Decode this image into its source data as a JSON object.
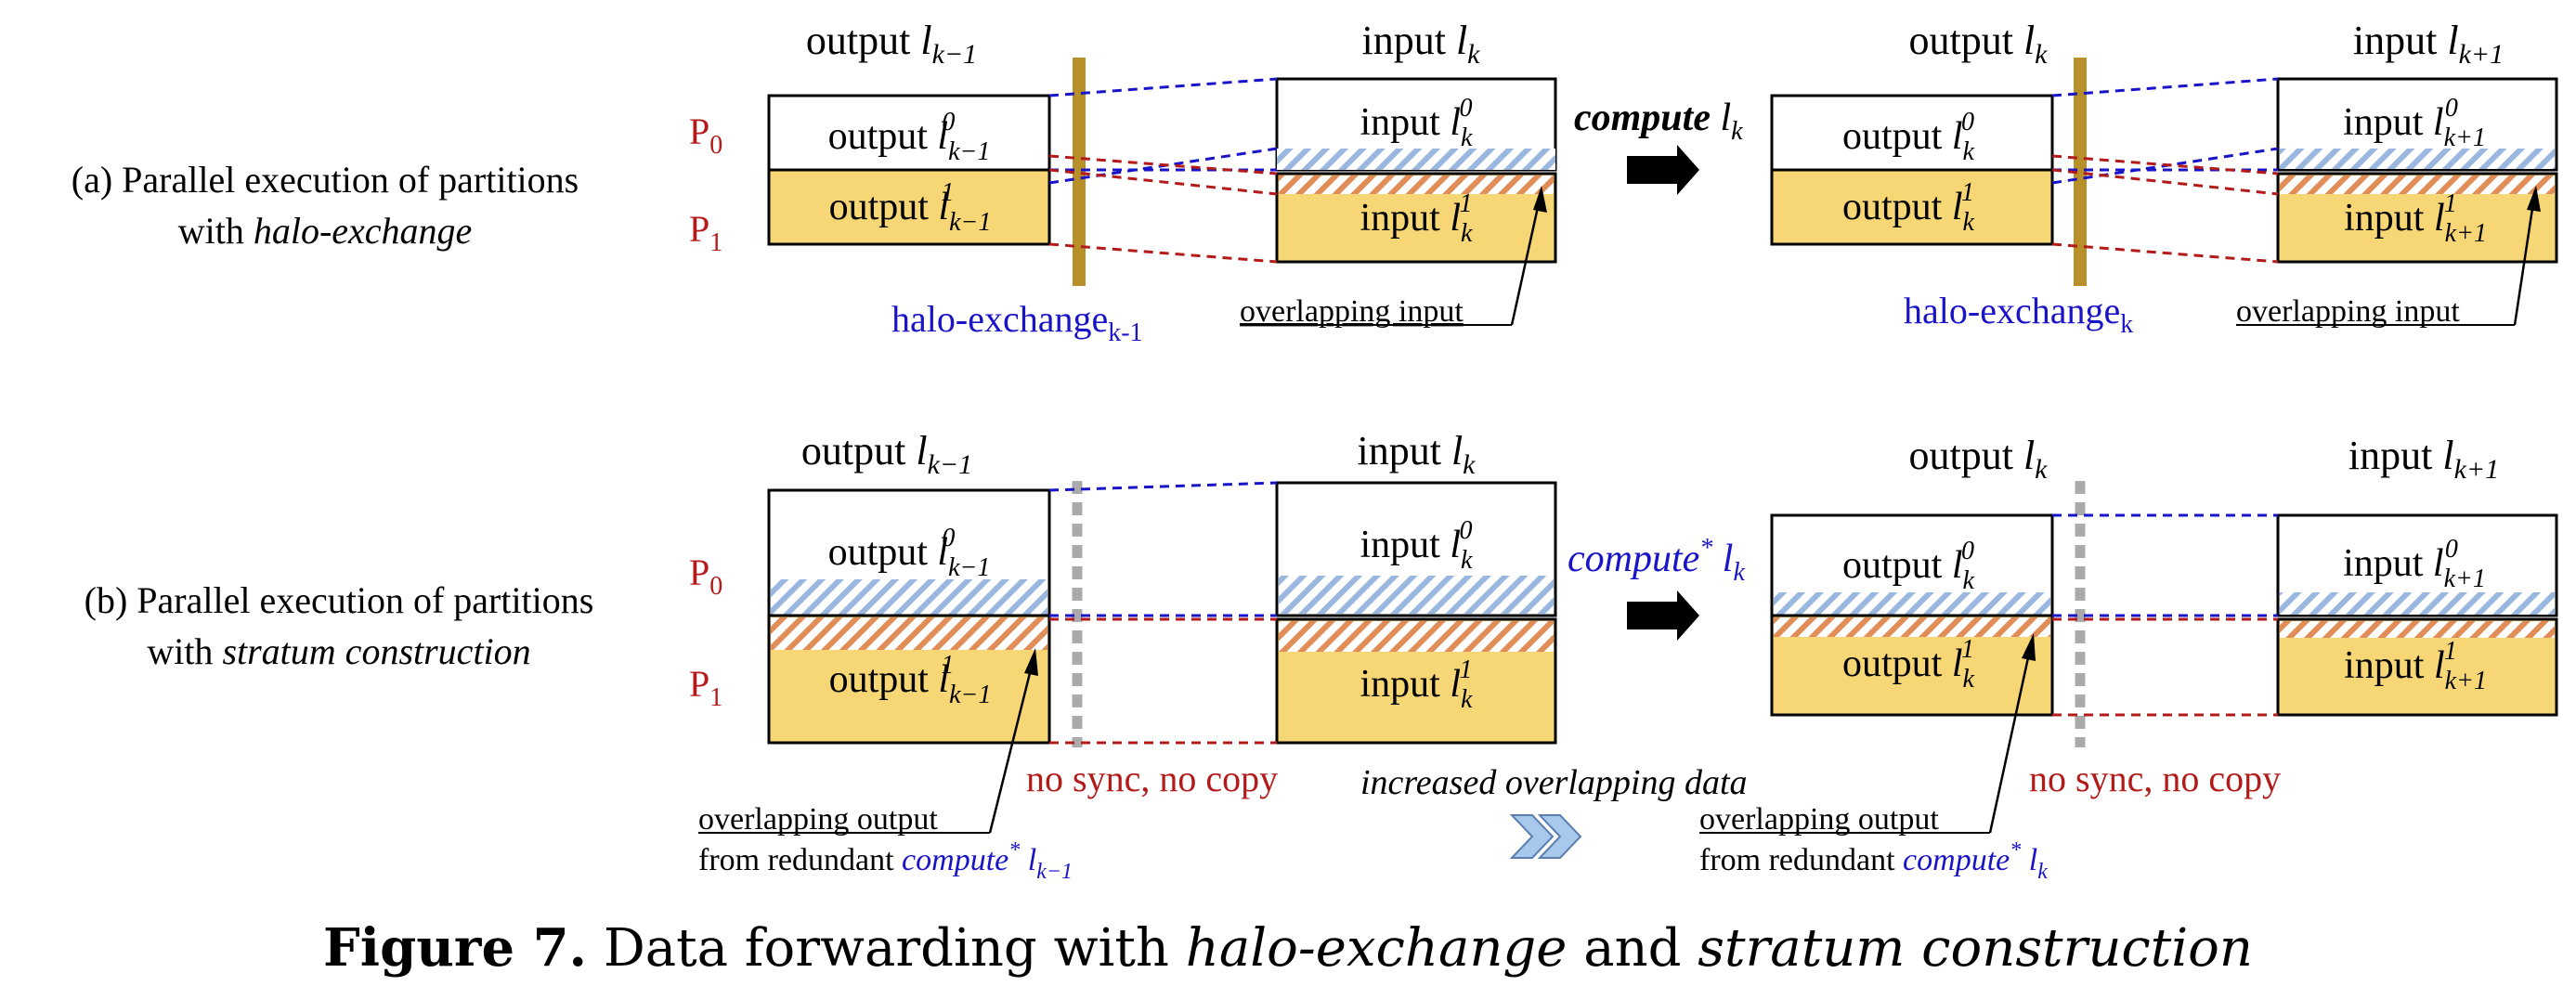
{
  "colors": {
    "yellow": "#f7d676",
    "blue_hatch": "#9ab8df",
    "orange_hatch": "#e08d58",
    "blue_text": "#1a14c8",
    "red_text": "#b31b1b",
    "bar": "#b8902a",
    "dots": "#aaaaaa"
  },
  "procs": {
    "p0": "P",
    "p0_sub": "0",
    "p1": "P",
    "p1_sub": "1"
  },
  "row_a": {
    "label_line1": "(a) Parallel execution of partitions",
    "label_line2_prefix": "with ",
    "label_line2_em": "halo-exchange",
    "col1_title": "output",
    "col2_title": "input",
    "col3_title": "output",
    "col4_title": "input",
    "box_output": "output",
    "box_input": "input",
    "compute": "compute",
    "compute_var": "l",
    "compute_sub": "k",
    "halo1": "halo-exchange",
    "halo1_sub": "k-1",
    "halo2": "halo-exchange",
    "halo2_sub": "k",
    "overlap1": "overlapping input",
    "overlap2": "overlapping input"
  },
  "row_b": {
    "label_line1": "(b) Parallel execution of partitions",
    "label_line2_prefix": "with ",
    "label_line2_em": "stratum construction",
    "col1_title": "output",
    "col2_title": "input",
    "col3_title": "output",
    "col4_title": "input",
    "box_output": "output",
    "box_input": "input",
    "compute": "compute",
    "compute_star": "*",
    "compute_var": "l",
    "compute_sub": "k",
    "nosync1": "no sync, no copy",
    "nosync2": "no sync, no copy",
    "increased": "increased overlapping data",
    "overlap_out1_line1": "overlapping output",
    "overlap_out1_line2": "from redundant ",
    "overlap_out1_compute": "compute",
    "overlap_out1_star": "*",
    "overlap_out1_var": "l",
    "overlap_out1_sub": "k−1",
    "overlap_out2_line1": "overlapping output",
    "overlap_out2_line2": "from redundant ",
    "overlap_out2_compute": "compute",
    "overlap_out2_star": "*",
    "overlap_out2_var": "l",
    "overlap_out2_sub": "k"
  },
  "math": {
    "l": "l",
    "k": "k",
    "km1": "k−1",
    "kp1": "k+1",
    "sup0": "0",
    "sup1": "1"
  },
  "caption": {
    "bold": "Figure 7.",
    "t1": " Data forwarding with ",
    "em1": "halo-exchange",
    "t2": " and ",
    "em2": "stratum construction"
  }
}
